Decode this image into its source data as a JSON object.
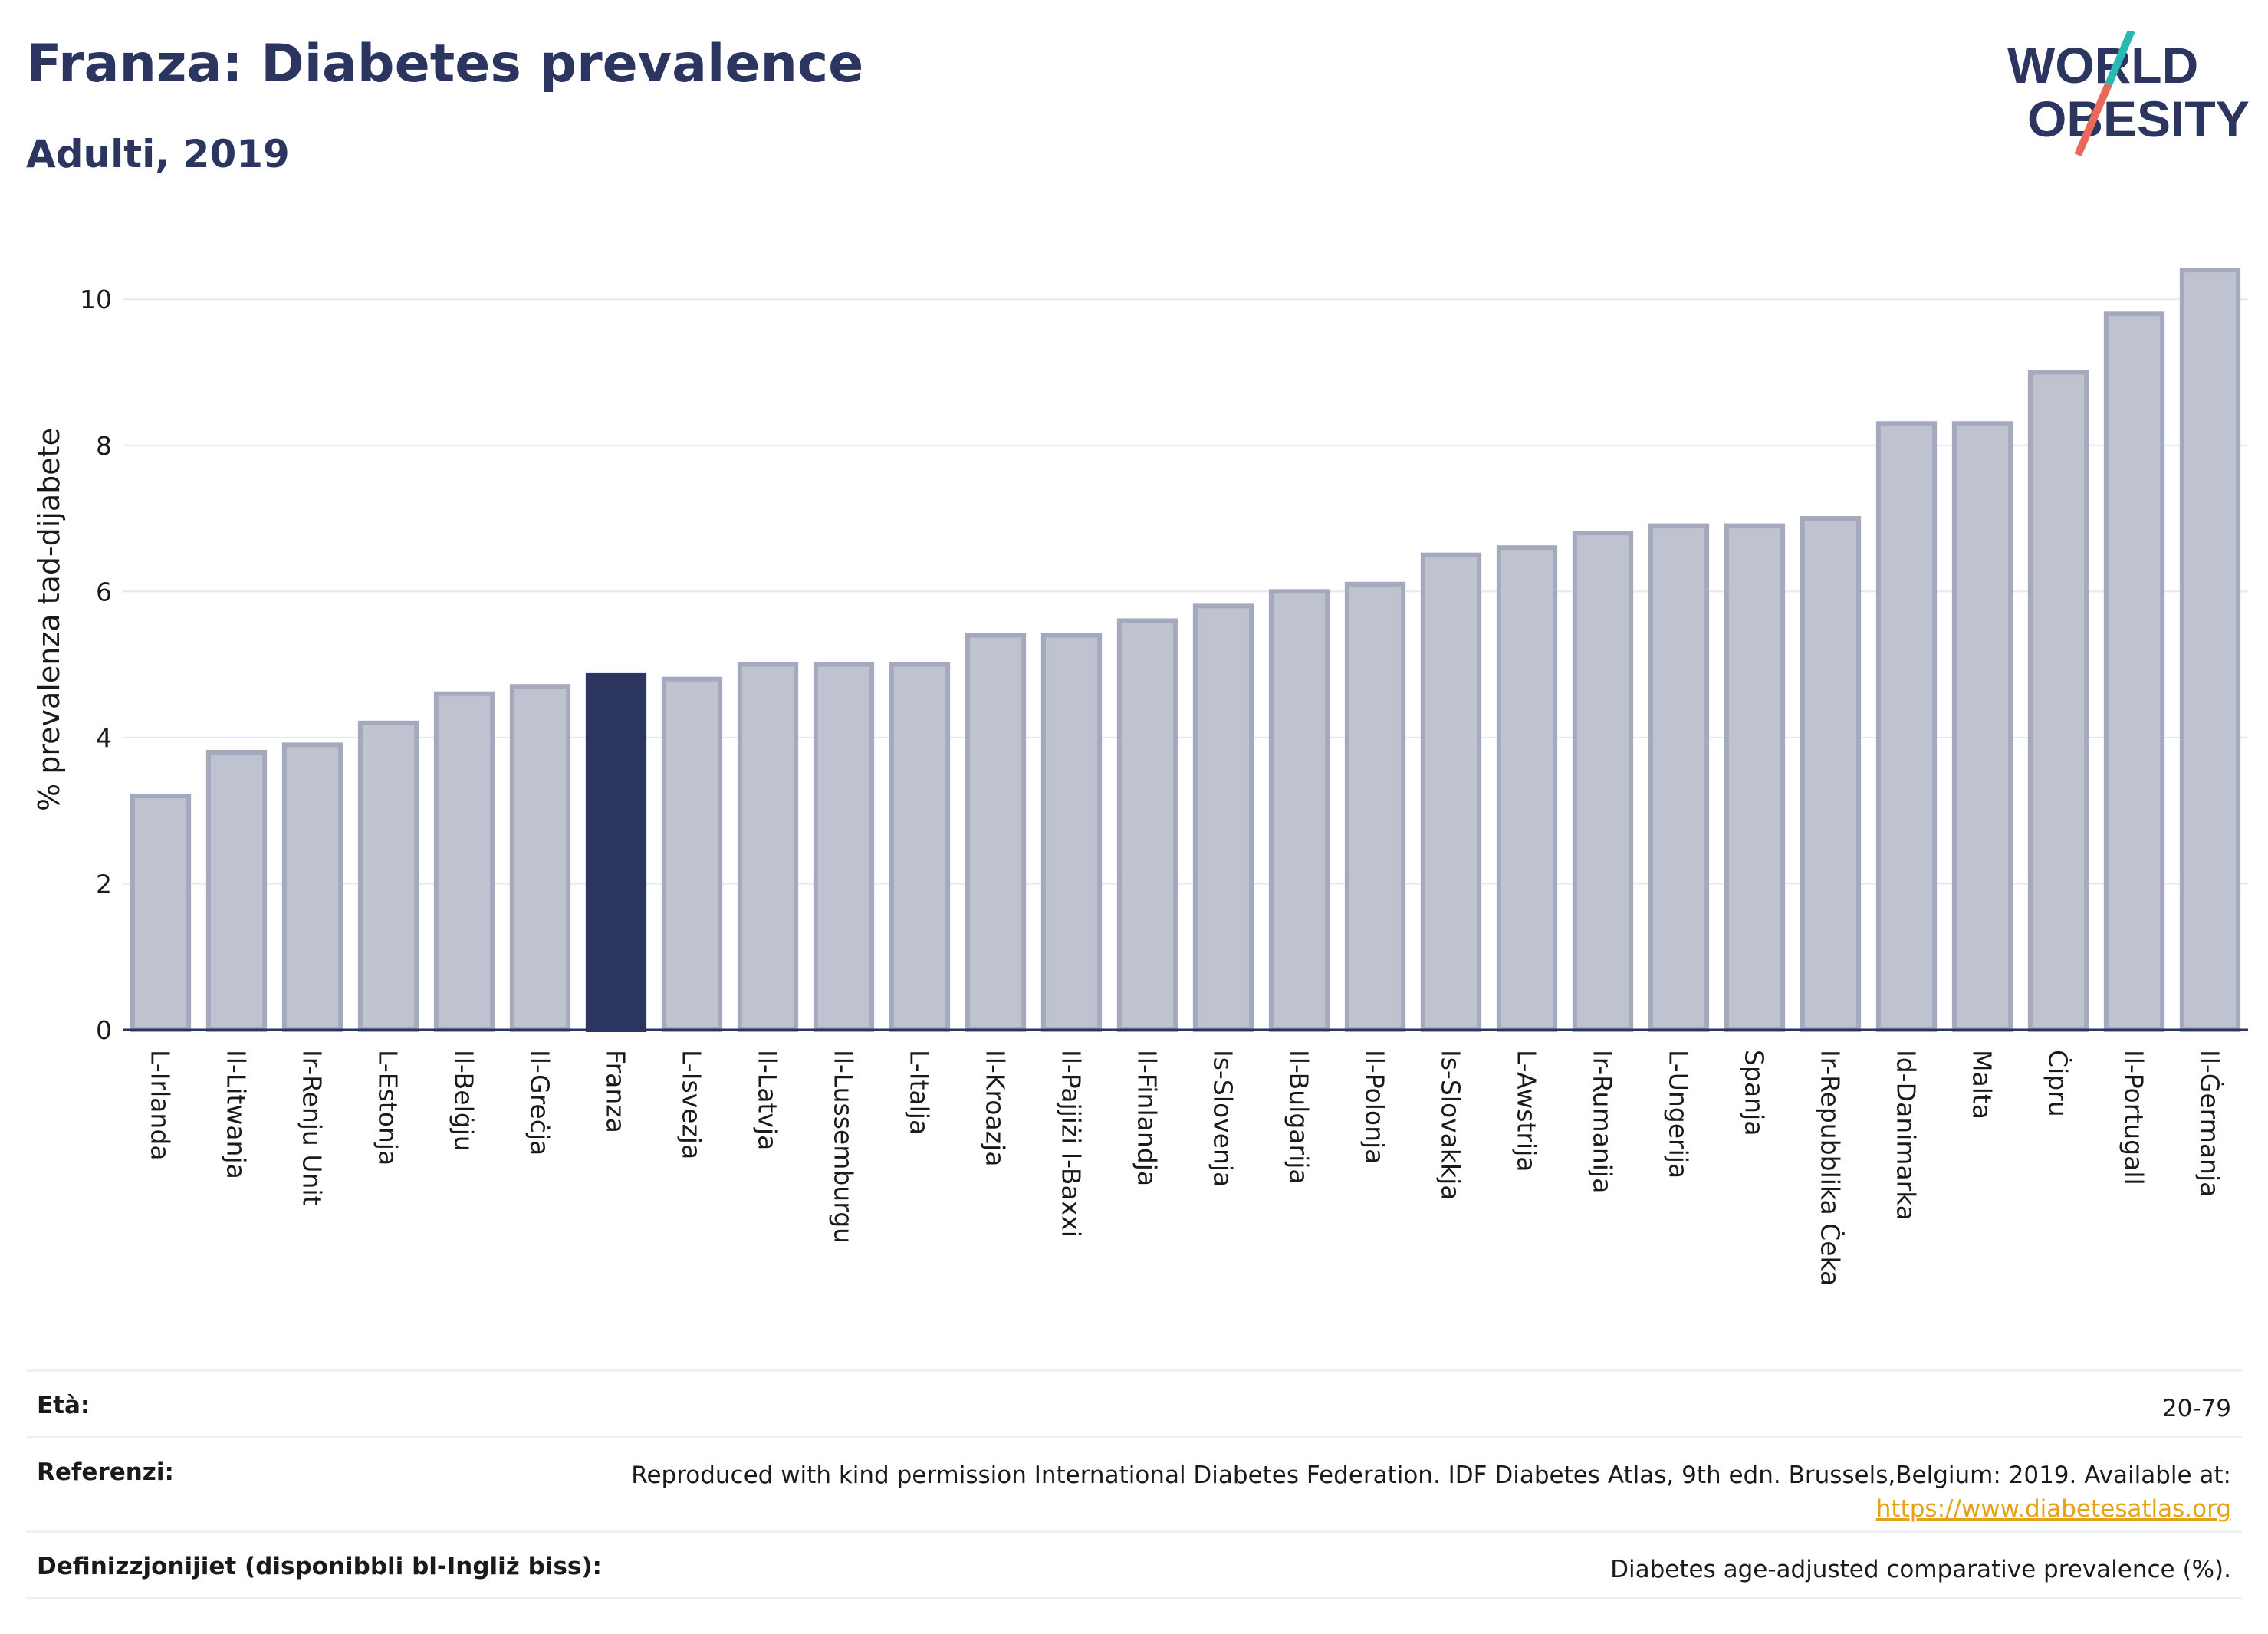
{
  "header": {
    "title": "Franza: Diabetes prevalence",
    "subtitle": "Adulti, 2019"
  },
  "logo": {
    "line1": "WORLD",
    "line2": "OBESITY"
  },
  "chart_data": {
    "type": "bar",
    "ylabel": "% prevalenza tad-dijabete",
    "ylim": [
      0,
      10.8
    ],
    "yticks": [
      0,
      2,
      4,
      6,
      8,
      10
    ],
    "grid": true,
    "highlight": "Franza",
    "colors": {
      "default": "#bfc2cf",
      "default_edge": "#a5a9bd",
      "highlight": "#2c3560"
    },
    "categories": [
      "L-Irlanda",
      "Il-Litwanja",
      "Ir-Renju Unit",
      "L-Estonja",
      "Il-Belġju",
      "Il-Greċja",
      "Franza",
      "L-Isvezja",
      "Il-Latvja",
      "Il-Lussemburgu",
      "L-Italja",
      "Il-Kroazja",
      "Il-Pajjiżi l-Baxxi",
      "Il-Finlandja",
      "Is-Slovenja",
      "Il-Bulgarija",
      "Il-Polonja",
      "Is-Slovakkja",
      "L-Awstrija",
      "Ir-Rumanija",
      "L-Ungerija",
      "Spanja",
      "Ir-Repubblika Ċeka",
      "Id-Danimarka",
      "Malta",
      "Ċipru",
      "Il-Portugall",
      "Il-Ġermanja"
    ],
    "values": [
      3.2,
      3.8,
      3.9,
      4.2,
      4.6,
      4.7,
      4.85,
      4.8,
      5.0,
      5.0,
      5.0,
      5.4,
      5.4,
      5.6,
      5.8,
      6.0,
      6.1,
      6.5,
      6.6,
      6.8,
      6.9,
      6.9,
      7.0,
      8.3,
      8.3,
      9.0,
      9.8,
      10.4
    ]
  },
  "meta": {
    "age_label": "Età:",
    "age_value": "20-79",
    "ref_label": "Referenzi:",
    "ref_value": "Reproduced with kind permission International Diabetes Federation. IDF Diabetes Atlas, 9th edn. Brussels,Belgium: 2019. Available at:",
    "ref_link": "https://www.diabetesatlas.org",
    "def_label": "Definizzjonijiet (disponibbli bl-Ingliż biss):",
    "def_value": "Diabetes age-adjusted comparative prevalence (%)."
  }
}
